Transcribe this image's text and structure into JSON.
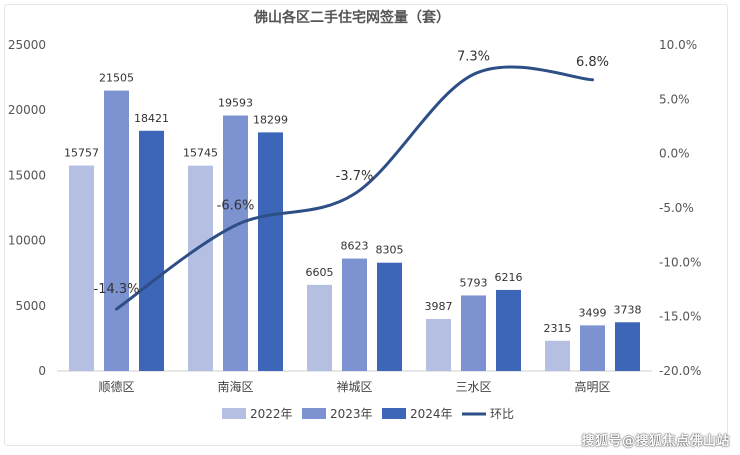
{
  "chart_data": {
    "type": "bar",
    "title": "佛山各区二手住宅网签量（套）",
    "categories": [
      "顺德区",
      "南海区",
      "禅城区",
      "三水区",
      "高明区"
    ],
    "series": [
      {
        "name": "2022年",
        "type": "bar",
        "axis": "left",
        "color": "#b4bfe2",
        "values": [
          15757,
          15745,
          6605,
          3987,
          2315
        ]
      },
      {
        "name": "2023年",
        "type": "bar",
        "axis": "left",
        "color": "#7d93d1",
        "values": [
          21505,
          19593,
          8623,
          5793,
          3499
        ]
      },
      {
        "name": "2024年",
        "type": "bar",
        "axis": "left",
        "color": "#3d66b8",
        "values": [
          18421,
          18299,
          8305,
          6216,
          3738
        ]
      },
      {
        "name": "环比",
        "type": "line",
        "axis": "right",
        "color": "#2e4f86",
        "values": [
          -14.3,
          -6.6,
          -3.7,
          7.3,
          6.8
        ]
      }
    ],
    "bar_labels": [
      [
        "15757",
        "15745",
        "6605",
        "3987",
        "2315"
      ],
      [
        "21505",
        "19593",
        "8623",
        "5793",
        "3499"
      ],
      [
        "18421",
        "18299",
        "8305",
        "6216",
        "3738"
      ]
    ],
    "line_labels": [
      "-14.3%",
      "-6.6%",
      "-3.7%",
      "7.3%",
      "6.8%"
    ],
    "y_left": {
      "min": 0,
      "max": 25000,
      "ticks": [
        "0",
        "5000",
        "10000",
        "15000",
        "20000",
        "25000"
      ]
    },
    "y_right": {
      "min": -20,
      "max": 10,
      "ticks": [
        "-20.0%",
        "-15.0%",
        "-10.0%",
        "-5.0%",
        "0.0%",
        "5.0%",
        "10.0%"
      ]
    },
    "grid": false,
    "legend_position": "bottom",
    "legend": [
      "2022年",
      "2023年",
      "2024年",
      "环比"
    ]
  },
  "watermark": "搜狐号@搜狐焦点佛山站"
}
